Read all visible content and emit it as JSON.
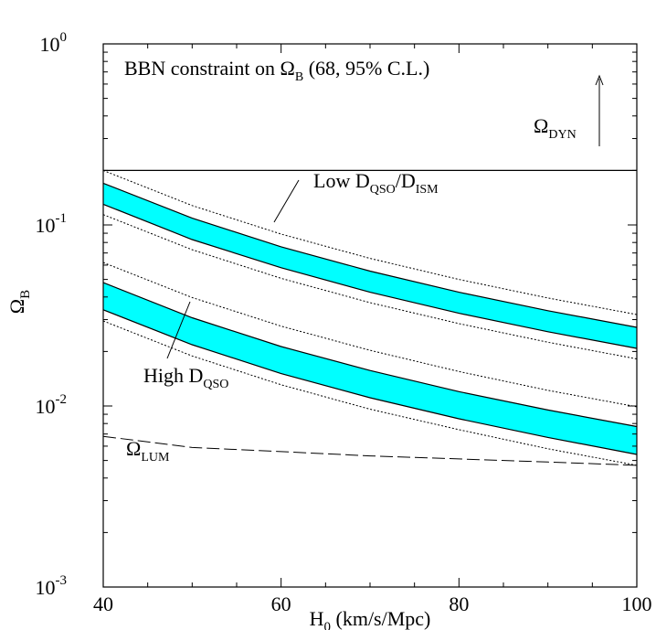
{
  "chart_data": {
    "type": "line",
    "title": "",
    "xlabel": "H",
    "xlabel_sub": "0",
    "xlabel_tail": " (km/s/Mpc)",
    "ylabel": "Ω",
    "ylabel_sub": "B",
    "xlim": [
      40,
      100
    ],
    "ylim": [
      0.001,
      1
    ],
    "yscale": "log",
    "grid": false,
    "x_ticks": [
      {
        "value": 40,
        "label": "40"
      },
      {
        "value": 60,
        "label": "60"
      },
      {
        "value": 80,
        "label": "80"
      },
      {
        "value": 100,
        "label": "100"
      }
    ],
    "y_ticks": [
      {
        "value": 0.001,
        "base": "10",
        "exp": "-3"
      },
      {
        "value": 0.01,
        "base": "10",
        "exp": "-2"
      },
      {
        "value": 0.1,
        "base": "10",
        "exp": "-1"
      },
      {
        "value": 1,
        "base": "10",
        "exp": "0"
      }
    ],
    "x": [
      40,
      50,
      60,
      70,
      80,
      90,
      100
    ],
    "bands": [
      {
        "fill": "#00ffff",
        "lower_68": [
          0.13,
          0.083,
          0.058,
          0.0425,
          0.0325,
          0.0257,
          0.0208
        ],
        "upper_68": [
          0.17,
          0.109,
          0.0757,
          0.0556,
          0.0425,
          0.0336,
          0.0272
        ],
        "lower_95": [
          0.114,
          0.073,
          0.0507,
          0.0372,
          0.0285,
          0.0225,
          0.0182
        ],
        "upper_95": [
          0.2,
          0.128,
          0.089,
          0.0653,
          0.05,
          0.0395,
          0.032
        ]
      },
      {
        "fill": "#00ffff",
        "lower_68": [
          0.034,
          0.0218,
          0.0151,
          0.0111,
          0.0085,
          0.0067,
          0.0054
        ],
        "upper_68": [
          0.048,
          0.0307,
          0.0213,
          0.0157,
          0.012,
          0.0095,
          0.0077
        ],
        "lower_95": [
          0.0295,
          0.0189,
          0.0131,
          0.0096,
          0.0074,
          0.0058,
          0.0047
        ],
        "upper_95": [
          0.062,
          0.0397,
          0.0276,
          0.0203,
          0.0155,
          0.0122,
          0.0099
        ]
      }
    ],
    "omega_lum": [
      0.0068,
      0.0059,
      0.0056,
      0.0053,
      0.0051,
      0.0049,
      0.0047
    ],
    "omega_dyn_level": 0.2,
    "annotations": {
      "bbn": {
        "text": "BBN constraint on Ω",
        "sub": "B",
        "tail": " (68, 95% C.L.)"
      },
      "low": {
        "text": "Low D",
        "sub1": "QSO",
        "mid": "/D",
        "sub2": "ISM"
      },
      "high": {
        "text": "High D",
        "sub": "QSO"
      },
      "dyn": {
        "text": "Ω",
        "sub": "DYN"
      },
      "lum": {
        "text": "Ω",
        "sub": "LUM"
      }
    }
  }
}
